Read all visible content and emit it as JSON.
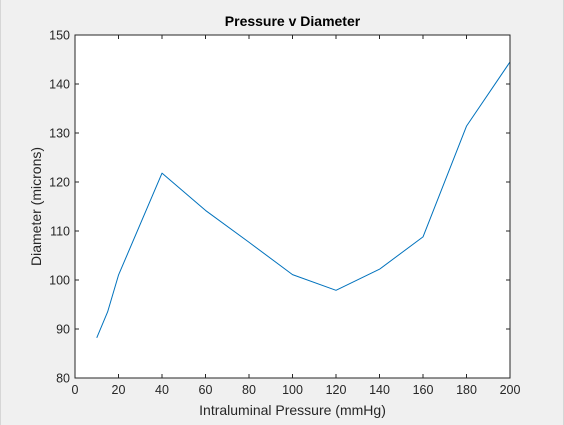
{
  "chart_data": {
    "type": "line",
    "title": "Pressure v Diameter",
    "xlabel": "Intraluminal Pressure (mmHg)",
    "ylabel": "Diameter (microns)",
    "xlim": [
      0,
      200
    ],
    "ylim": [
      80,
      150
    ],
    "xticks": [
      0,
      20,
      40,
      60,
      80,
      100,
      120,
      140,
      160,
      180,
      200
    ],
    "yticks": [
      80,
      90,
      100,
      110,
      120,
      130,
      140,
      150
    ],
    "grid": false,
    "series": [
      {
        "color": "#0072bd",
        "x": [
          10,
          15,
          20,
          40,
          60,
          80,
          100,
          120,
          140,
          160,
          180,
          200
        ],
        "y": [
          88.2,
          93.5,
          101,
          121.8,
          114.2,
          107.7,
          101.1,
          97.9,
          102.2,
          108.8,
          131.4,
          144.5
        ]
      }
    ]
  }
}
